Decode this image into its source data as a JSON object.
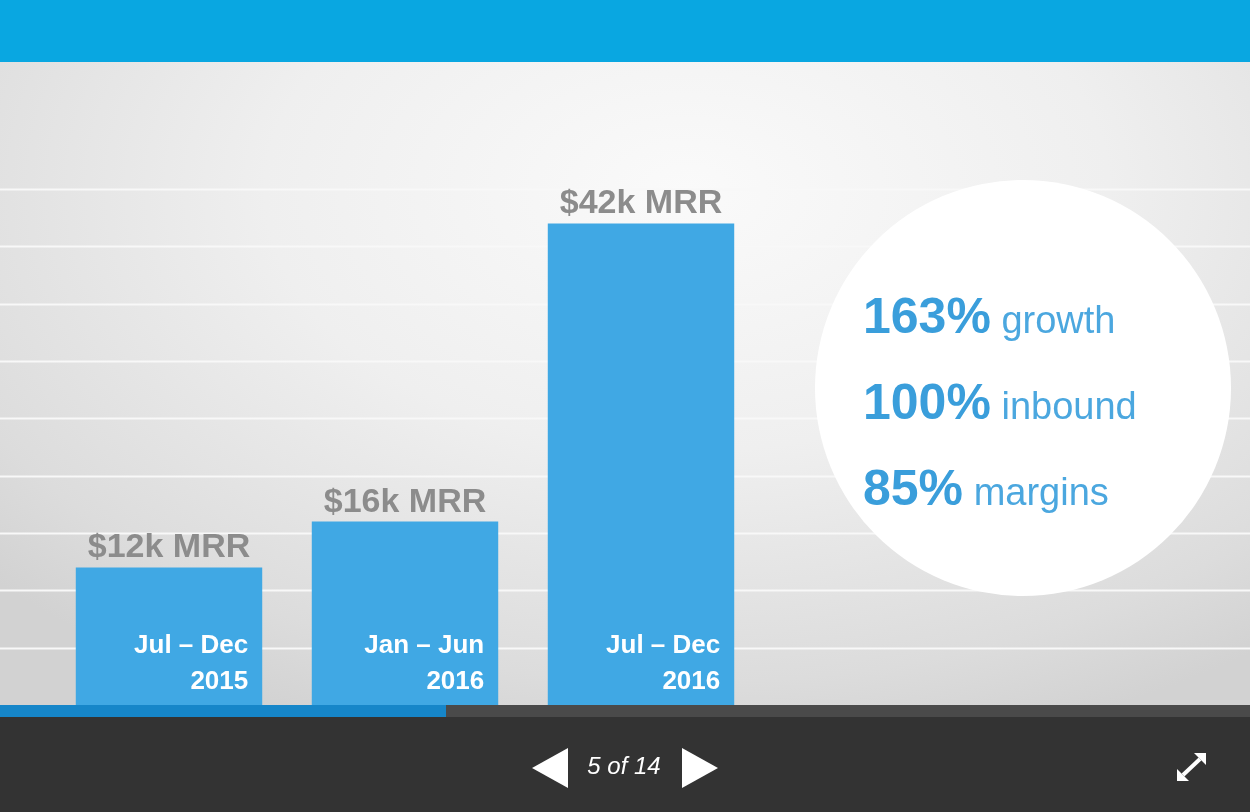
{
  "chart_data": {
    "type": "bar",
    "categories": [
      "Jul – Dec 2015",
      "Jan – Jun 2016",
      "Jul – Dec 2016"
    ],
    "values": [
      12,
      16,
      42
    ],
    "color": "#40a8e4",
    "value_labels": [
      "$12k MRR",
      "$16k MRR",
      "$42k MRR"
    ],
    "ylim": [
      0,
      45
    ],
    "yticks": [
      {
        "value": 5,
        "label": null
      },
      {
        "value": 10,
        "label": null
      },
      {
        "value": 15,
        "label": null
      },
      {
        "value": 20,
        "label": null
      },
      {
        "value": 25,
        "label": null
      },
      {
        "value": 30,
        "label": null
      },
      {
        "value": 35,
        "label": null
      },
      {
        "value": 40,
        "label": null
      },
      {
        "value": 45,
        "label": null
      }
    ],
    "grid": "y",
    "tick_labels": "x",
    "annotations": [
      "163% growth",
      "100% inbound",
      "85% margins",
      "5 of 14"
    ]
  }
}
